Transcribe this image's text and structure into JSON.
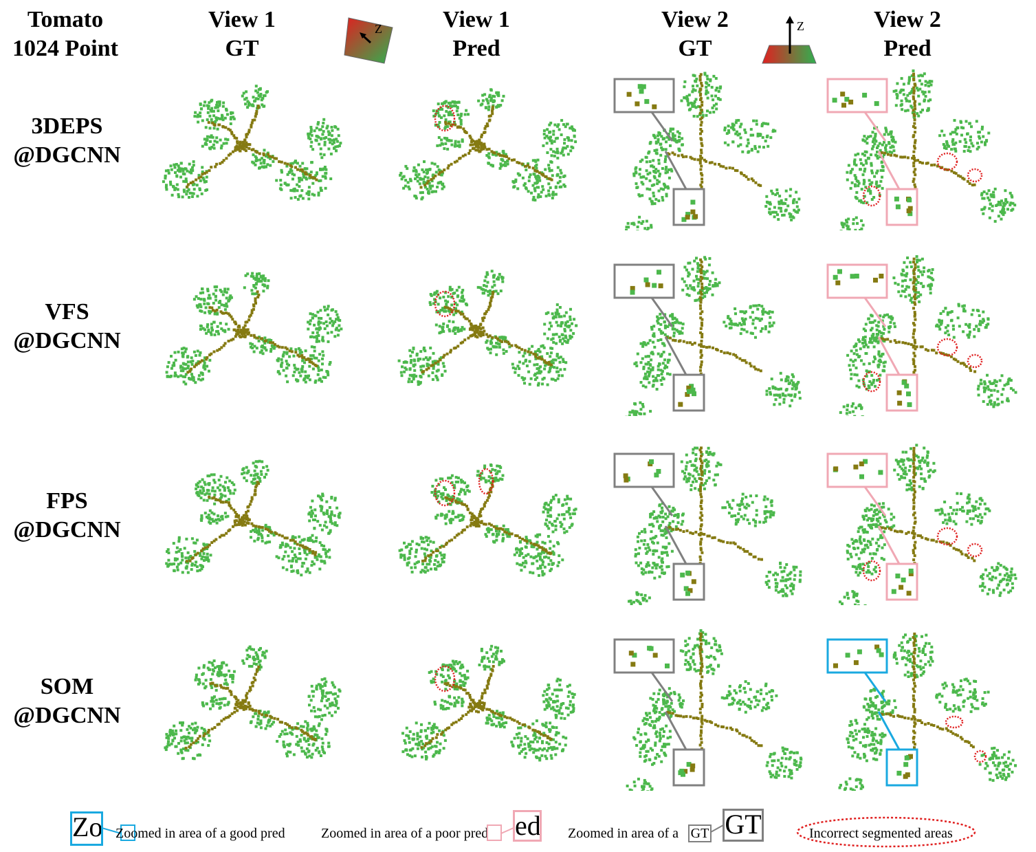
{
  "headers": {
    "corner": [
      "Tomato",
      "1024 Point"
    ],
    "view1_gt": [
      "View 1",
      "GT"
    ],
    "view1_pred": [
      "View 1",
      "Pred"
    ],
    "view2_gt": [
      "View 2",
      "GT"
    ],
    "view2_pred": [
      "View 2",
      "Pred"
    ]
  },
  "axis_icons": {
    "view1_axis": "Z",
    "view2_axis": "Z"
  },
  "rows": [
    {
      "method": "3DEPS",
      "backbone": "@DGCNN"
    },
    {
      "method": "VFS",
      "backbone": "@DGCNN"
    },
    {
      "method": "FPS",
      "backbone": "@DGCNN"
    },
    {
      "method": "SOM",
      "backbone": "@DGCNN"
    }
  ],
  "legend": {
    "good": "Zoomed in area of a good pred",
    "good_box_text": "Zoo",
    "poor": "Zoomed in area of a poor pred",
    "poor_box_text": "ed",
    "gt": "Zoomed in area of a",
    "gt_small": "GT",
    "gt_big": "GT",
    "incorrect": "Incorrect segmented areas"
  },
  "colors": {
    "leaf": "#4cb84c",
    "stem": "#857a12",
    "good_box": "#1aa9e0",
    "poor_box": "#f0a8b4",
    "gt_box": "#808080",
    "error": "#e02020"
  }
}
